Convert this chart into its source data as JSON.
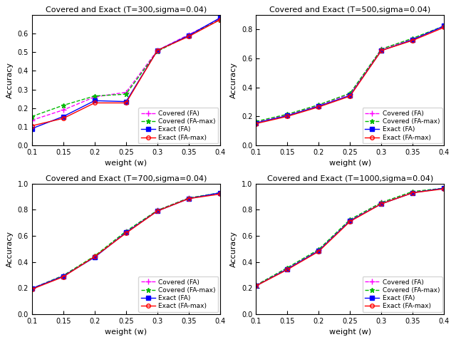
{
  "x": [
    0.1,
    0.15,
    0.2,
    0.25,
    0.3,
    0.35,
    0.4
  ],
  "subplots": [
    {
      "title": "Covered and Exact (T=300,sigma=0.04)",
      "ylim": [
        0,
        0.7
      ],
      "yticks": [
        0,
        0.1,
        0.2,
        0.3,
        0.4,
        0.5,
        0.6
      ],
      "covered_FA": [
        0.135,
        0.19,
        0.26,
        0.285,
        0.51,
        0.595,
        0.68
      ],
      "covered_FAmax": [
        0.155,
        0.215,
        0.265,
        0.275,
        0.505,
        0.59,
        0.675
      ],
      "exact_FA": [
        0.09,
        0.155,
        0.24,
        0.235,
        0.51,
        0.59,
        0.685
      ],
      "exact_FAmax": [
        0.105,
        0.145,
        0.228,
        0.228,
        0.51,
        0.585,
        0.675
      ]
    },
    {
      "title": "Covered and Exact (T=500,sigma=0.04)",
      "ylim": [
        0,
        0.9
      ],
      "yticks": [
        0,
        0.2,
        0.4,
        0.6,
        0.8
      ],
      "covered_FA": [
        0.16,
        0.21,
        0.275,
        0.355,
        0.665,
        0.735,
        0.82
      ],
      "covered_FAmax": [
        0.165,
        0.215,
        0.28,
        0.36,
        0.665,
        0.74,
        0.825
      ],
      "exact_FA": [
        0.155,
        0.205,
        0.27,
        0.345,
        0.655,
        0.73,
        0.825
      ],
      "exact_FAmax": [
        0.15,
        0.2,
        0.265,
        0.34,
        0.655,
        0.725,
        0.815
      ]
    },
    {
      "title": "Covered and Exact (T=700,sigma=0.04)",
      "ylim": [
        0,
        1.0
      ],
      "yticks": [
        0,
        0.2,
        0.4,
        0.6,
        0.8,
        1.0
      ],
      "covered_FA": [
        0.195,
        0.295,
        0.44,
        0.63,
        0.795,
        0.89,
        0.925
      ],
      "covered_FAmax": [
        0.195,
        0.295,
        0.445,
        0.635,
        0.795,
        0.89,
        0.93
      ],
      "exact_FA": [
        0.195,
        0.29,
        0.435,
        0.625,
        0.79,
        0.885,
        0.93
      ],
      "exact_FAmax": [
        0.19,
        0.285,
        0.44,
        0.62,
        0.79,
        0.885,
        0.92
      ]
    },
    {
      "title": "Covered and Exact (T=1000,sigma=0.04)",
      "ylim": [
        0,
        1.0
      ],
      "yticks": [
        0,
        0.2,
        0.4,
        0.6,
        0.8,
        1.0
      ],
      "covered_FA": [
        0.22,
        0.35,
        0.49,
        0.72,
        0.855,
        0.935,
        0.965
      ],
      "covered_FAmax": [
        0.22,
        0.355,
        0.495,
        0.725,
        0.855,
        0.94,
        0.965
      ],
      "exact_FA": [
        0.215,
        0.345,
        0.485,
        0.715,
        0.845,
        0.93,
        0.965
      ],
      "exact_FAmax": [
        0.215,
        0.34,
        0.48,
        0.71,
        0.845,
        0.93,
        0.96
      ]
    }
  ],
  "colors": {
    "covered_FA": "#ff00ff",
    "covered_FAmax": "#00bb00",
    "exact_FA": "#0000ff",
    "exact_FAmax": "#ff0000"
  },
  "legend_labels": {
    "covered_FA": "Covered (FA)",
    "covered_FAmax": "Covered (FA-max)",
    "exact_FA": "Exact (FA)",
    "exact_FAmax": "Exact (FA-max)"
  },
  "xlabel": "weight (w)",
  "ylabel": "Accuracy",
  "xticks": [
    0.1,
    0.15,
    0.2,
    0.25,
    0.3,
    0.35,
    0.4
  ],
  "legend_positions": [
    "center right",
    "center right",
    "center right",
    "center right"
  ]
}
